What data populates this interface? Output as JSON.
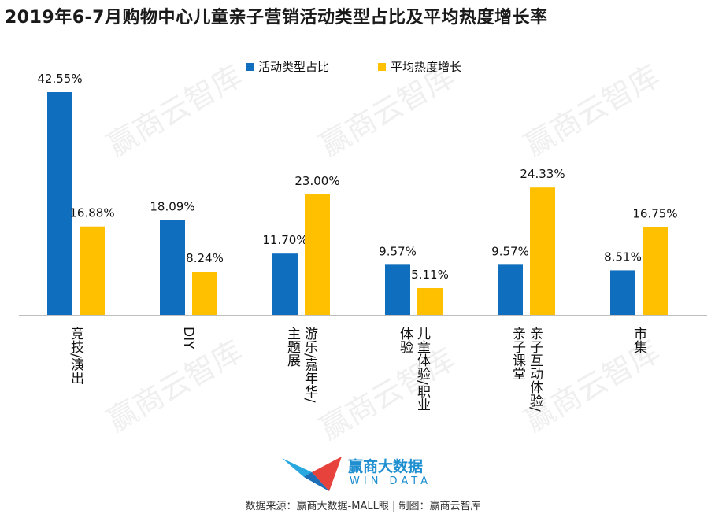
{
  "title": "2019年6-7月购物中心儿童亲子营销活动类型占比及平均热度增长率",
  "watermark": "赢商云智库",
  "brand": {
    "name_cn": "赢商大数据",
    "name_en": "WIN DATA"
  },
  "source": "数据来源：赢商大数据-MALL眼 | 制图：赢商云智库",
  "colors": {
    "series1": "#0F6EBE",
    "series2": "#FFC000",
    "axis": "#BFBFBF"
  },
  "chart_data": {
    "type": "bar",
    "categories": [
      "竞技/演出",
      "DIY",
      "游乐/嘉年华/主题展",
      "儿童体验/职业体验",
      "亲子互动体验/亲子课堂",
      "市集"
    ],
    "category_lines": [
      [
        "竞技/演出"
      ],
      [
        "DIY"
      ],
      [
        "游乐/嘉年华/",
        "主题展"
      ],
      [
        "儿童体验/职业",
        "体验"
      ],
      [
        "亲子互动体验/",
        "亲子课堂"
      ],
      [
        "市集"
      ]
    ],
    "series": [
      {
        "name": "活动类型占比",
        "values": [
          42.55,
          18.09,
          11.7,
          9.57,
          9.57,
          8.51
        ],
        "labels": [
          "42.55%",
          "18.09%",
          "11.70%",
          "9.57%",
          "9.57%",
          "8.51%"
        ]
      },
      {
        "name": "平均热度增长",
        "values": [
          16.88,
          8.24,
          23.0,
          5.11,
          24.33,
          16.75
        ],
        "labels": [
          "16.88%",
          "8.24%",
          "23.00%",
          "5.11%",
          "24.33%",
          "16.75%"
        ]
      }
    ],
    "ylim": [
      0,
      42.55
    ],
    "legend": "top-center",
    "grid": false
  }
}
